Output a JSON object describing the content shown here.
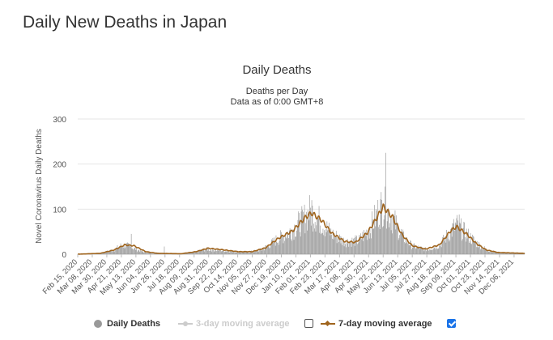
{
  "page": {
    "heading": "Daily New Deaths in Japan"
  },
  "chart_data": {
    "type": "bar",
    "title": "Daily Deaths",
    "subtitle": "Deaths per Day",
    "subtitle2": "Data as of 0:00 GMT+8",
    "ylabel": "Novel Coronavirus Daily Deaths",
    "xlabel": "",
    "ylim": [
      0,
      300
    ],
    "yticks": [
      0,
      100,
      200,
      300
    ],
    "grid": true,
    "legend_position": "bottom",
    "x_start": "2020-02-15",
    "x_end": "2021-12-22",
    "x_tick_labels": [
      "Feb 15, 2020",
      "Mar 08, 2020",
      "Mar 30, 2020",
      "Apr 21, 2020",
      "May 13, 2020",
      "Jun 04, 2020",
      "Jun 26, 2020",
      "Jul 18, 2020",
      "Aug 09, 2020",
      "Aug 31, 2020",
      "Sep 22, 2020",
      "Oct 14, 2020",
      "Nov 05, 2020",
      "Nov 27, 2020",
      "Dec 19, 2020",
      "Jan 10, 2021",
      "Feb 01, 2021",
      "Feb 23, 2021",
      "Mar 17, 2021",
      "Apr 08, 2021",
      "Apr 30, 2021",
      "May 22, 2021",
      "Jun 13, 2021",
      "Jul 05, 2021",
      "Jul 27, 2021",
      "Aug 18, 2021",
      "Sep 09, 2021",
      "Oct 01, 2021",
      "Oct 23, 2021",
      "Nov 14, 2021",
      "Dec 06, 2021"
    ],
    "colors": {
      "bars": "#999999",
      "moving_avg_7": "#a0651e",
      "moving_avg_3": "#cccccc",
      "grid": "#e6e6e6"
    },
    "series": [
      {
        "name": "Daily Deaths",
        "type": "bar",
        "visible": true
      },
      {
        "name": "3-day moving average",
        "type": "line",
        "visible": false
      },
      {
        "name": "7-day moving average",
        "type": "line",
        "visible": true
      }
    ],
    "daily_deaths_keypoints": [
      {
        "date": "2020-02-15",
        "value": 0
      },
      {
        "date": "2020-03-20",
        "value": 2
      },
      {
        "date": "2020-04-10",
        "value": 10
      },
      {
        "date": "2020-04-22",
        "value": 20
      },
      {
        "date": "2020-05-02",
        "value": 18
      },
      {
        "date": "2020-05-12",
        "value": 12
      },
      {
        "date": "2020-05-25",
        "value": 5
      },
      {
        "date": "2020-06-10",
        "value": 2
      },
      {
        "date": "2020-07-01",
        "value": 1
      },
      {
        "date": "2020-07-25",
        "value": 1
      },
      {
        "date": "2020-08-10",
        "value": 5
      },
      {
        "date": "2020-08-28",
        "value": 11
      },
      {
        "date": "2020-09-15",
        "value": 9
      },
      {
        "date": "2020-10-10",
        "value": 6
      },
      {
        "date": "2020-11-01",
        "value": 5
      },
      {
        "date": "2020-11-20",
        "value": 10
      },
      {
        "date": "2020-12-10",
        "value": 30
      },
      {
        "date": "2021-01-01",
        "value": 50
      },
      {
        "date": "2021-01-20",
        "value": 75
      },
      {
        "date": "2021-02-01",
        "value": 95
      },
      {
        "date": "2021-02-15",
        "value": 75
      },
      {
        "date": "2021-03-05",
        "value": 45
      },
      {
        "date": "2021-03-25",
        "value": 28
      },
      {
        "date": "2021-04-15",
        "value": 30
      },
      {
        "date": "2021-05-01",
        "value": 55
      },
      {
        "date": "2021-05-15",
        "value": 95
      },
      {
        "date": "2021-05-22",
        "value": 110
      },
      {
        "date": "2021-06-05",
        "value": 80
      },
      {
        "date": "2021-06-20",
        "value": 40
      },
      {
        "date": "2021-07-05",
        "value": 18
      },
      {
        "date": "2021-07-27",
        "value": 10
      },
      {
        "date": "2021-08-15",
        "value": 20
      },
      {
        "date": "2021-09-01",
        "value": 50
      },
      {
        "date": "2021-09-10",
        "value": 65
      },
      {
        "date": "2021-09-25",
        "value": 45
      },
      {
        "date": "2021-10-10",
        "value": 25
      },
      {
        "date": "2021-10-25",
        "value": 10
      },
      {
        "date": "2021-11-10",
        "value": 4
      },
      {
        "date": "2021-12-22",
        "value": 2
      }
    ],
    "daily_deaths_spikes": [
      {
        "date": "2020-05-06",
        "value": 45
      },
      {
        "date": "2020-06-25",
        "value": 17
      },
      {
        "date": "2021-05-26",
        "value": 225
      },
      {
        "date": "2021-05-18",
        "value": 122
      },
      {
        "date": "2021-02-03",
        "value": 120
      },
      {
        "date": "2021-09-14",
        "value": 88
      }
    ],
    "moving_avg_7_keypoints": [
      {
        "date": "2020-02-15",
        "value": 0
      },
      {
        "date": "2020-03-20",
        "value": 2
      },
      {
        "date": "2020-04-10",
        "value": 10
      },
      {
        "date": "2020-04-26",
        "value": 22
      },
      {
        "date": "2020-05-10",
        "value": 20
      },
      {
        "date": "2020-05-28",
        "value": 6
      },
      {
        "date": "2020-06-15",
        "value": 2
      },
      {
        "date": "2020-07-20",
        "value": 1
      },
      {
        "date": "2020-08-12",
        "value": 6
      },
      {
        "date": "2020-08-30",
        "value": 14
      },
      {
        "date": "2020-09-18",
        "value": 11
      },
      {
        "date": "2020-10-15",
        "value": 6
      },
      {
        "date": "2020-11-05",
        "value": 6
      },
      {
        "date": "2020-11-25",
        "value": 15
      },
      {
        "date": "2020-12-15",
        "value": 38
      },
      {
        "date": "2021-01-05",
        "value": 55
      },
      {
        "date": "2021-01-25",
        "value": 88
      },
      {
        "date": "2021-02-03",
        "value": 97
      },
      {
        "date": "2021-02-18",
        "value": 80
      },
      {
        "date": "2021-03-05",
        "value": 50
      },
      {
        "date": "2021-03-25",
        "value": 30
      },
      {
        "date": "2021-04-10",
        "value": 28
      },
      {
        "date": "2021-04-28",
        "value": 50
      },
      {
        "date": "2021-05-12",
        "value": 85
      },
      {
        "date": "2021-05-22",
        "value": 112
      },
      {
        "date": "2021-06-05",
        "value": 88
      },
      {
        "date": "2021-06-20",
        "value": 45
      },
      {
        "date": "2021-07-05",
        "value": 20
      },
      {
        "date": "2021-07-25",
        "value": 12
      },
      {
        "date": "2021-08-15",
        "value": 22
      },
      {
        "date": "2021-09-01",
        "value": 55
      },
      {
        "date": "2021-09-10",
        "value": 65
      },
      {
        "date": "2021-09-25",
        "value": 48
      },
      {
        "date": "2021-10-10",
        "value": 25
      },
      {
        "date": "2021-10-25",
        "value": 10
      },
      {
        "date": "2021-11-12",
        "value": 4
      },
      {
        "date": "2021-12-22",
        "value": 2
      }
    ]
  },
  "legend": {
    "daily_label": "Daily Deaths",
    "ma3_label": "3-day moving average",
    "ma3_checked": false,
    "ma7_label": "7-day moving average",
    "ma7_checked": true
  }
}
